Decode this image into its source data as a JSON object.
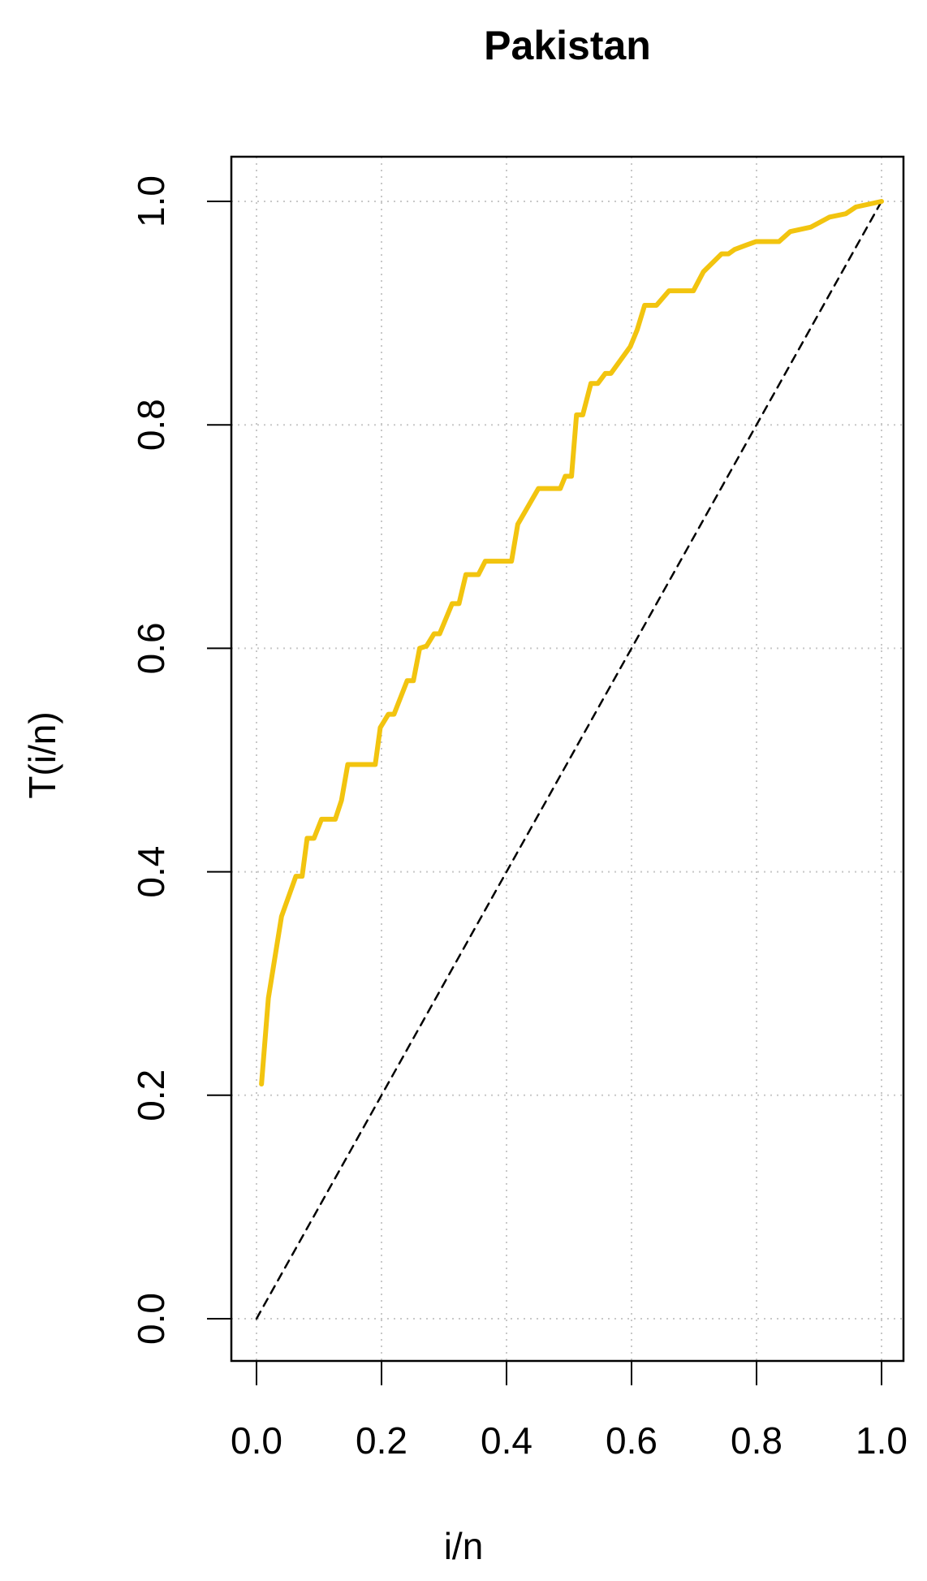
{
  "chart_data": {
    "type": "line",
    "title": "Pakistan",
    "x_label": "i/n",
    "y_label": "T(i/n)",
    "xlim": [
      0,
      1
    ],
    "ylim": [
      0,
      1
    ],
    "xticks": [
      {
        "value": 0,
        "label": "0.0"
      },
      0.2,
      0.4,
      0.6,
      0.8,
      {
        "value": 1,
        "label": "1.0"
      }
    ],
    "yticks": [
      {
        "value": 0,
        "label": "0.0"
      },
      0.2,
      0.4,
      0.6,
      0.8,
      {
        "value": 1,
        "label": "1.0"
      }
    ],
    "grid": true,
    "series": [
      {
        "color": "#f2c40f",
        "x": [
          0.008,
          0.019,
          0.04,
          0.063,
          0.073,
          0.081,
          0.092,
          0.104,
          0.126,
          0.136,
          0.146,
          0.19,
          0.198,
          0.211,
          0.22,
          0.241,
          0.251,
          0.261,
          0.272,
          0.284,
          0.293,
          0.313,
          0.324,
          0.335,
          0.355,
          0.366,
          0.408,
          0.418,
          0.451,
          0.486,
          0.494,
          0.504,
          0.512,
          0.522,
          0.535,
          0.546,
          0.558,
          0.567,
          0.598,
          0.609,
          0.621,
          0.64,
          0.66,
          0.699,
          0.715,
          0.744,
          0.755,
          0.765,
          0.784,
          0.799,
          0.836,
          0.854,
          0.887,
          0.917,
          0.943,
          0.959,
          1.0
        ],
        "values": [
          0.21,
          0.287,
          0.36,
          0.396,
          0.396,
          0.43,
          0.43,
          0.447,
          0.447,
          0.464,
          0.496,
          0.496,
          0.529,
          0.541,
          0.541,
          0.571,
          0.571,
          0.6,
          0.602,
          0.613,
          0.613,
          0.64,
          0.64,
          0.666,
          0.666,
          0.678,
          0.678,
          0.711,
          0.743,
          0.743,
          0.754,
          0.754,
          0.809,
          0.809,
          0.837,
          0.837,
          0.846,
          0.846,
          0.87,
          0.885,
          0.907,
          0.907,
          0.92,
          0.92,
          0.937,
          0.953,
          0.953,
          0.957,
          0.961,
          0.964,
          0.964,
          0.973,
          0.977,
          0.986,
          0.989,
          0.995,
          1.0
        ]
      },
      {
        "color": "#000000",
        "dashed": true,
        "x": [
          0,
          1
        ],
        "values": [
          0,
          1
        ]
      }
    ]
  }
}
